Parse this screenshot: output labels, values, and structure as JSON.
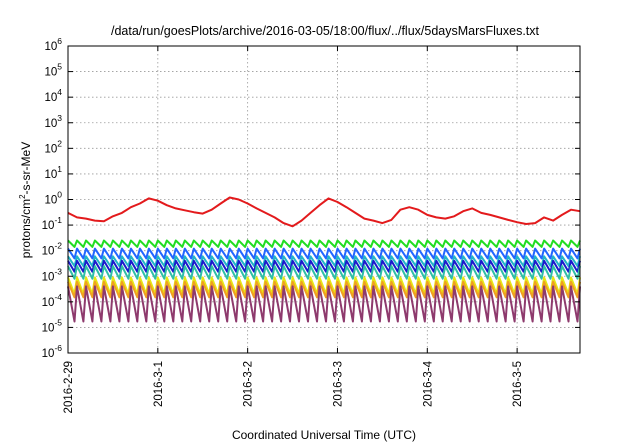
{
  "chart_data": {
    "type": "line",
    "title": "/data/run/goesPlots/archive/2016-03-05/18:00/flux/../flux/5daysMarsFluxes.txt",
    "xlabel": "Coordinated Universal Time (UTC)",
    "ylabel_main": "protons/cm",
    "ylabel_sup": "2",
    "ylabel_tail": "-s-sr-MeV",
    "y_scale": "log",
    "ylim": [
      1e-06,
      1000000.0
    ],
    "xlim_days": [
      0,
      5.7
    ],
    "grid": true,
    "x_ticks": [
      {
        "label": "2016-2-29",
        "day": 0
      },
      {
        "label": "2016-3-1",
        "day": 1
      },
      {
        "label": "2016-3-2",
        "day": 2
      },
      {
        "label": "2016-3-3",
        "day": 3
      },
      {
        "label": "2016-3-4",
        "day": 4
      },
      {
        "label": "2016-3-5",
        "day": 5
      }
    ],
    "y_ticks": [
      {
        "base": "10",
        "exp": "6",
        "value": 1000000.0
      },
      {
        "base": "10",
        "exp": "5",
        "value": 100000.0
      },
      {
        "base": "10",
        "exp": "4",
        "value": 10000.0
      },
      {
        "base": "10",
        "exp": "3",
        "value": 1000.0
      },
      {
        "base": "10",
        "exp": "2",
        "value": 100.0
      },
      {
        "base": "10",
        "exp": "1",
        "value": 10.0
      },
      {
        "base": "10",
        "exp": "0",
        "value": 1.0
      },
      {
        "base": "10",
        "exp": "-1",
        "value": 0.1
      },
      {
        "base": "10",
        "exp": "-2",
        "value": 0.01
      },
      {
        "base": "10",
        "exp": "-3",
        "value": 0.001
      },
      {
        "base": "10",
        "exp": "-4",
        "value": 0.0001
      },
      {
        "base": "10",
        "exp": "-5",
        "value": 1e-05
      },
      {
        "base": "10",
        "exp": "-6",
        "value": 1e-06
      }
    ],
    "series": [
      {
        "color": "#e31a1c",
        "x": [
          0,
          0.1,
          0.2,
          0.3,
          0.4,
          0.5,
          0.6,
          0.7,
          0.8,
          0.9,
          1.0,
          1.1,
          1.2,
          1.3,
          1.4,
          1.5,
          1.6,
          1.7,
          1.8,
          1.9,
          2.0,
          2.1,
          2.2,
          2.3,
          2.4,
          2.5,
          2.6,
          2.7,
          2.8,
          2.9,
          3.0,
          3.1,
          3.2,
          3.3,
          3.4,
          3.5,
          3.6,
          3.7,
          3.8,
          3.9,
          4.0,
          4.1,
          4.2,
          4.3,
          4.4,
          4.5,
          4.6,
          4.7,
          4.8,
          4.9,
          5.0,
          5.1,
          5.2,
          5.3,
          5.4,
          5.5,
          5.6,
          5.7
        ],
        "values": [
          0.3,
          0.2,
          0.18,
          0.15,
          0.14,
          0.22,
          0.3,
          0.5,
          0.7,
          1.1,
          0.9,
          0.6,
          0.45,
          0.38,
          0.32,
          0.28,
          0.4,
          0.7,
          1.2,
          1.0,
          0.7,
          0.45,
          0.3,
          0.2,
          0.12,
          0.09,
          0.15,
          0.3,
          0.6,
          1.1,
          0.8,
          0.5,
          0.3,
          0.18,
          0.15,
          0.12,
          0.16,
          0.4,
          0.5,
          0.4,
          0.25,
          0.2,
          0.18,
          0.22,
          0.35,
          0.45,
          0.3,
          0.25,
          0.2,
          0.16,
          0.13,
          0.11,
          0.12,
          0.2,
          0.15,
          0.25,
          0.4,
          0.35
        ]
      },
      {
        "color": "#22dd22",
        "x_start": 0,
        "x_end": 5.7,
        "cycles": 57,
        "top": 0.025,
        "bottom": 0.014
      },
      {
        "color": "#2266ff",
        "x_start": 0,
        "x_end": 5.7,
        "cycles": 57,
        "top": 0.012,
        "bottom": 0.005
      },
      {
        "color": "#22b5c8",
        "x_start": 0,
        "x_end": 5.7,
        "cycles": 57,
        "top": 0.006,
        "bottom": 0.0025
      },
      {
        "color": "#1a1acc",
        "x_start": 0,
        "x_end": 5.7,
        "cycles": 57,
        "top": 0.004,
        "bottom": 0.0015
      },
      {
        "color": "#2fbfa6",
        "x_start": 0,
        "x_end": 5.7,
        "cycles": 57,
        "top": 0.0025,
        "bottom": 0.0008
      },
      {
        "color": "#e6e615",
        "x_start": 0,
        "x_end": 5.7,
        "cycles": 57,
        "top": 0.0009,
        "bottom": 0.0002
      },
      {
        "color": "#f0a020",
        "x_start": 0,
        "x_end": 5.7,
        "cycles": 57,
        "top": 0.0006,
        "bottom": 0.00015
      },
      {
        "color": "#8e3a6d",
        "x_start": 0,
        "x_end": 5.7,
        "cycles": 57,
        "top": 0.0004,
        "bottom": 1.7e-05
      }
    ]
  }
}
